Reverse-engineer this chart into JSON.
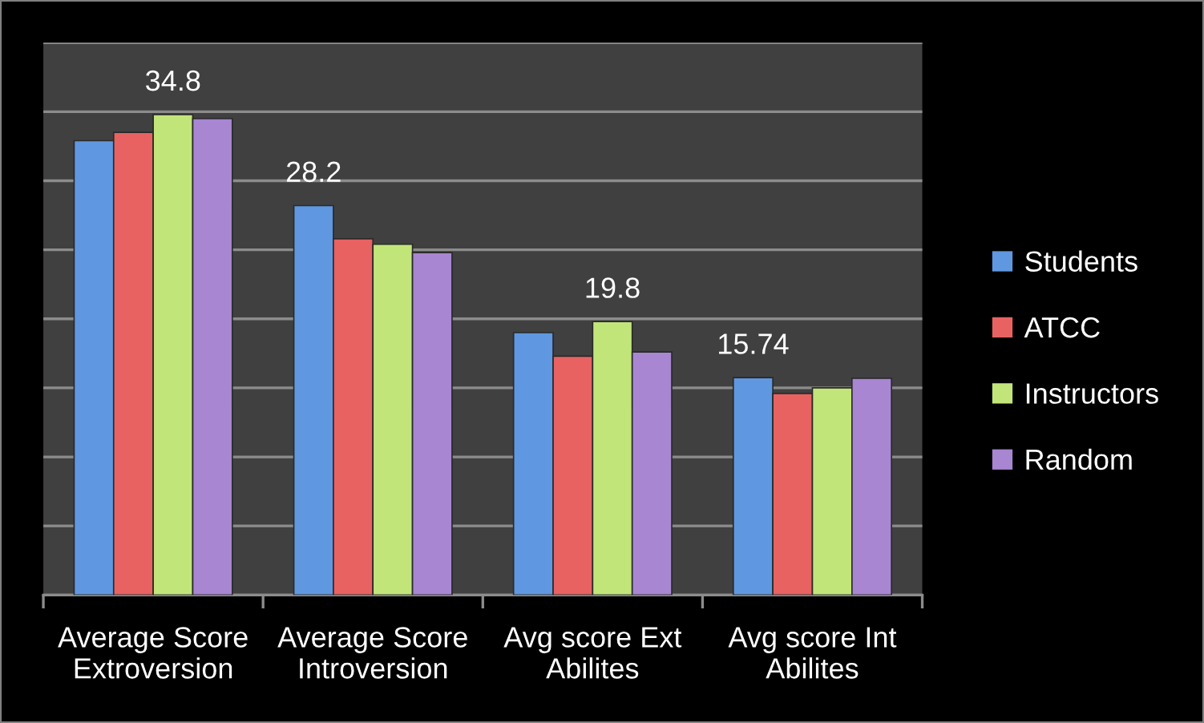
{
  "chart_data": {
    "type": "bar",
    "categories": [
      "Average Score\nExtroversion",
      "Average Score\nIntroversion",
      "Avg score Ext\nAbilites",
      "Avg score Int\nAbilites"
    ],
    "series": [
      {
        "name": "Students",
        "color": "#5f98e0",
        "values": [
          32.9,
          28.2,
          19.0,
          15.74
        ],
        "value_labels": [
          null,
          "28.2",
          null,
          "15.74"
        ]
      },
      {
        "name": "ATCC",
        "color": "#e86262",
        "values": [
          33.5,
          25.8,
          17.3,
          14.6
        ],
        "value_labels": [
          null,
          null,
          null,
          null
        ]
      },
      {
        "name": "Instructors",
        "color": "#c2e57a",
        "values": [
          34.8,
          25.4,
          19.8,
          15.0
        ],
        "value_labels": [
          "34.8",
          null,
          "19.8",
          null
        ]
      },
      {
        "name": "Random",
        "color": "#a886d2",
        "values": [
          34.5,
          24.8,
          17.6,
          15.7
        ],
        "value_labels": [
          null,
          null,
          null,
          null
        ]
      }
    ],
    "ylim": [
      0,
      40
    ],
    "yticks": [
      {
        "value": 0,
        "label": null
      },
      {
        "value": 5,
        "label": null
      },
      {
        "value": 10,
        "label": null
      },
      {
        "value": 15,
        "label": null
      },
      {
        "value": 20,
        "label": null
      },
      {
        "value": 25,
        "label": null
      },
      {
        "value": 30,
        "label": null
      },
      {
        "value": 35,
        "label": null
      },
      {
        "value": 40,
        "label": null
      }
    ],
    "tick_labels": "x",
    "grid": "y",
    "legend": "right"
  }
}
